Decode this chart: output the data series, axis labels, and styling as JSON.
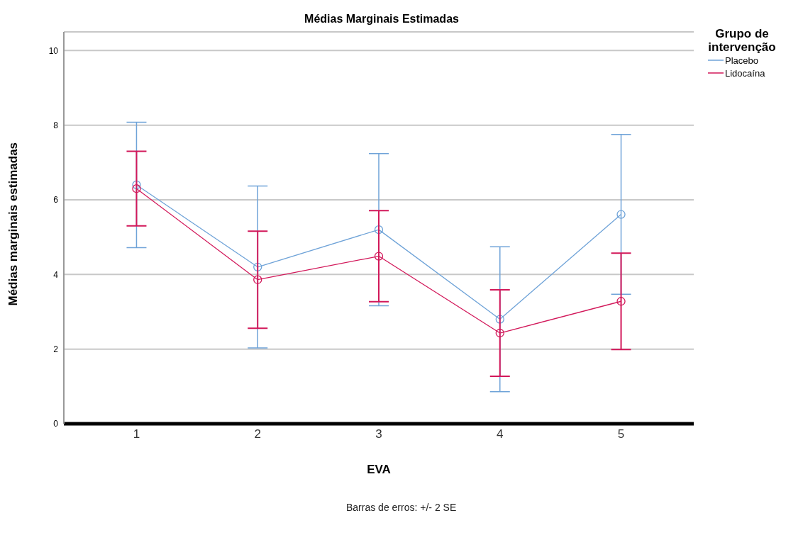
{
  "chart_data": {
    "type": "line",
    "title": "Médias Marginais Estimadas",
    "xlabel": "EVA",
    "ylabel": "Médias marginais estimadas",
    "legend_title": "Grupo de intervenção",
    "categories": [
      "1",
      "2",
      "3",
      "4",
      "5"
    ],
    "series": [
      {
        "name": "Placebo",
        "color": "#6fa3d8",
        "values": [
          6.4,
          4.2,
          5.2,
          2.8,
          5.61
        ],
        "errors": [
          1.68,
          2.17,
          2.04,
          1.94,
          2.14
        ]
      },
      {
        "name": "Lidocaína",
        "color": "#d2185a",
        "values": [
          6.3,
          3.86,
          4.49,
          2.43,
          3.28
        ],
        "errors": [
          1.0,
          1.3,
          1.22,
          1.16,
          1.29
        ]
      }
    ],
    "ylim": [
      0,
      10.5
    ],
    "yticks": [
      0,
      2,
      4,
      6,
      8,
      10
    ],
    "grid": "y",
    "legend": "top right",
    "marker": "circle",
    "line_style": "solid",
    "annotations": [
      "Barras de erros: +/- 2 SE"
    ]
  }
}
